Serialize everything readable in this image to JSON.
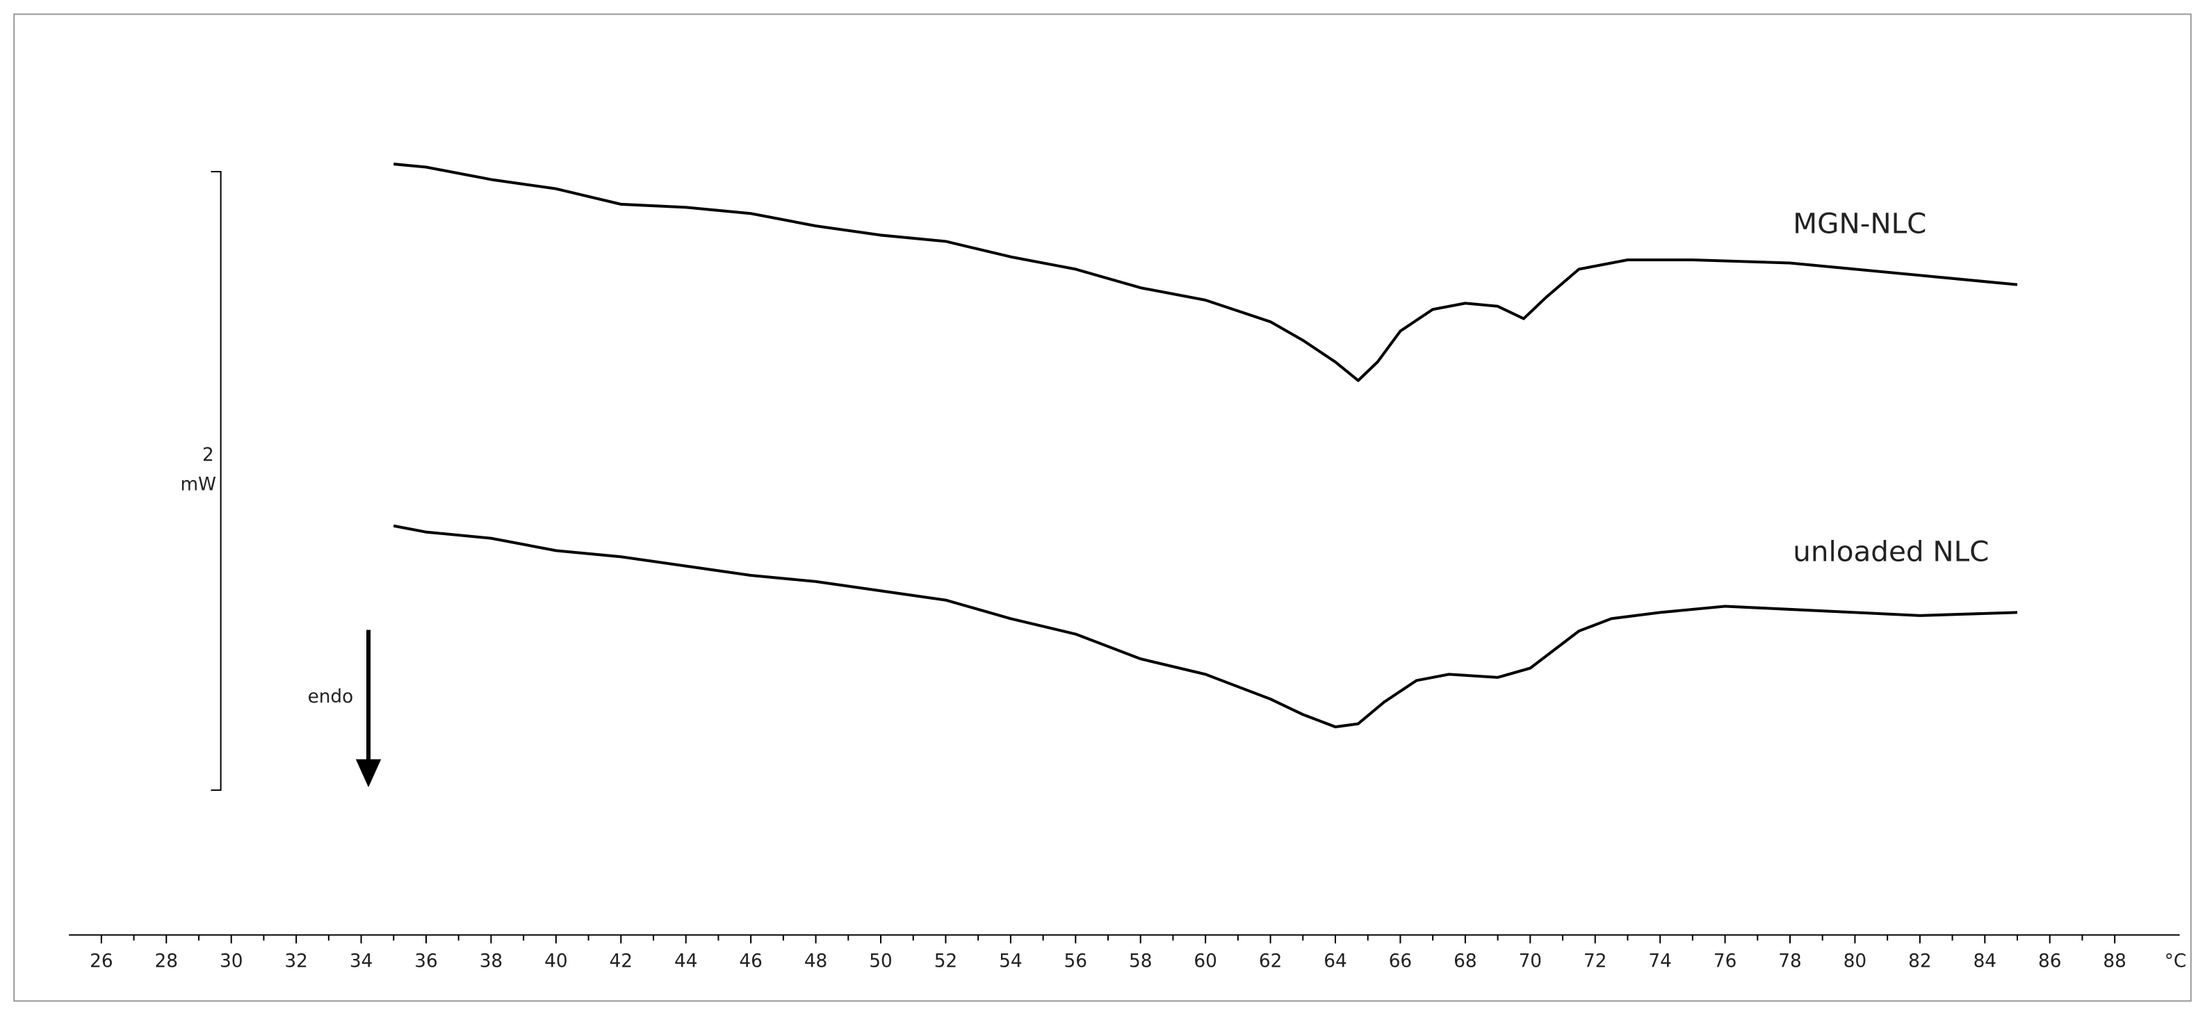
{
  "chart_data": {
    "type": "line",
    "x_label": "°C",
    "xlim": [
      25,
      90
    ],
    "xticks": [
      26,
      28,
      30,
      32,
      34,
      36,
      38,
      40,
      42,
      44,
      46,
      48,
      50,
      52,
      54,
      56,
      58,
      60,
      62,
      64,
      66,
      68,
      70,
      72,
      74,
      76,
      78,
      80,
      82,
      84,
      86,
      88
    ],
    "ylim": [
      0,
      3.3
    ],
    "scale_bar": {
      "value": 2,
      "unit": "mW"
    },
    "annotation": "endo",
    "series": [
      {
        "name": "MGN-NLC",
        "color": "#000000",
        "x": [
          35,
          36,
          38,
          40,
          42,
          44,
          46,
          48,
          50,
          52,
          54,
          56,
          58,
          60,
          62,
          63,
          64,
          64.7,
          65.3,
          66,
          67,
          68,
          69,
          69.8,
          70.5,
          71.5,
          73,
          75,
          78,
          80,
          82,
          84,
          85
        ],
        "values": [
          2.77,
          2.76,
          2.72,
          2.69,
          2.64,
          2.63,
          2.61,
          2.57,
          2.54,
          2.52,
          2.47,
          2.43,
          2.37,
          2.33,
          2.26,
          2.2,
          2.13,
          2.07,
          2.13,
          2.23,
          2.3,
          2.32,
          2.31,
          2.27,
          2.34,
          2.43,
          2.46,
          2.46,
          2.45,
          2.43,
          2.41,
          2.39,
          2.38
        ]
      },
      {
        "name": "unloaded NLC",
        "color": "#000000",
        "x": [
          35,
          36,
          38,
          40,
          42,
          44,
          46,
          48,
          50,
          52,
          54,
          56,
          58,
          60,
          62,
          63,
          64,
          64.7,
          65.5,
          66.5,
          67.5,
          69,
          70,
          71.5,
          72.5,
          74,
          76,
          78,
          80,
          82,
          85
        ],
        "values": [
          1.6,
          1.58,
          1.56,
          1.52,
          1.5,
          1.47,
          1.44,
          1.42,
          1.39,
          1.36,
          1.3,
          1.25,
          1.17,
          1.12,
          1.04,
          0.99,
          0.95,
          0.96,
          1.03,
          1.1,
          1.12,
          1.11,
          1.14,
          1.26,
          1.3,
          1.32,
          1.34,
          1.33,
          1.32,
          1.31,
          1.32
        ]
      }
    ]
  }
}
